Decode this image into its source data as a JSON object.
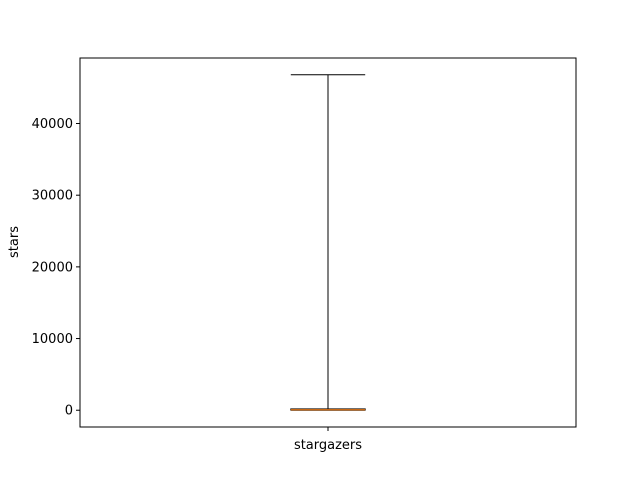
{
  "chart_data": {
    "type": "box",
    "title": "",
    "xlabel": "",
    "ylabel": "stars",
    "categories": [
      "stargazers"
    ],
    "ylim": [
      -2340,
      49140
    ],
    "yticks": [
      0,
      10000,
      20000,
      30000,
      40000
    ],
    "ytick_labels": [
      "0",
      "10000",
      "20000",
      "30000",
      "40000"
    ],
    "boxes": [
      {
        "name": "stargazers",
        "whisker_low": 0,
        "q1": 30,
        "median": 60,
        "q3": 180,
        "whisker_high": 46800
      }
    ],
    "colors": {
      "box": "#000000",
      "median": "#ff7f0e",
      "axes": "#000000"
    },
    "grid": false
  }
}
